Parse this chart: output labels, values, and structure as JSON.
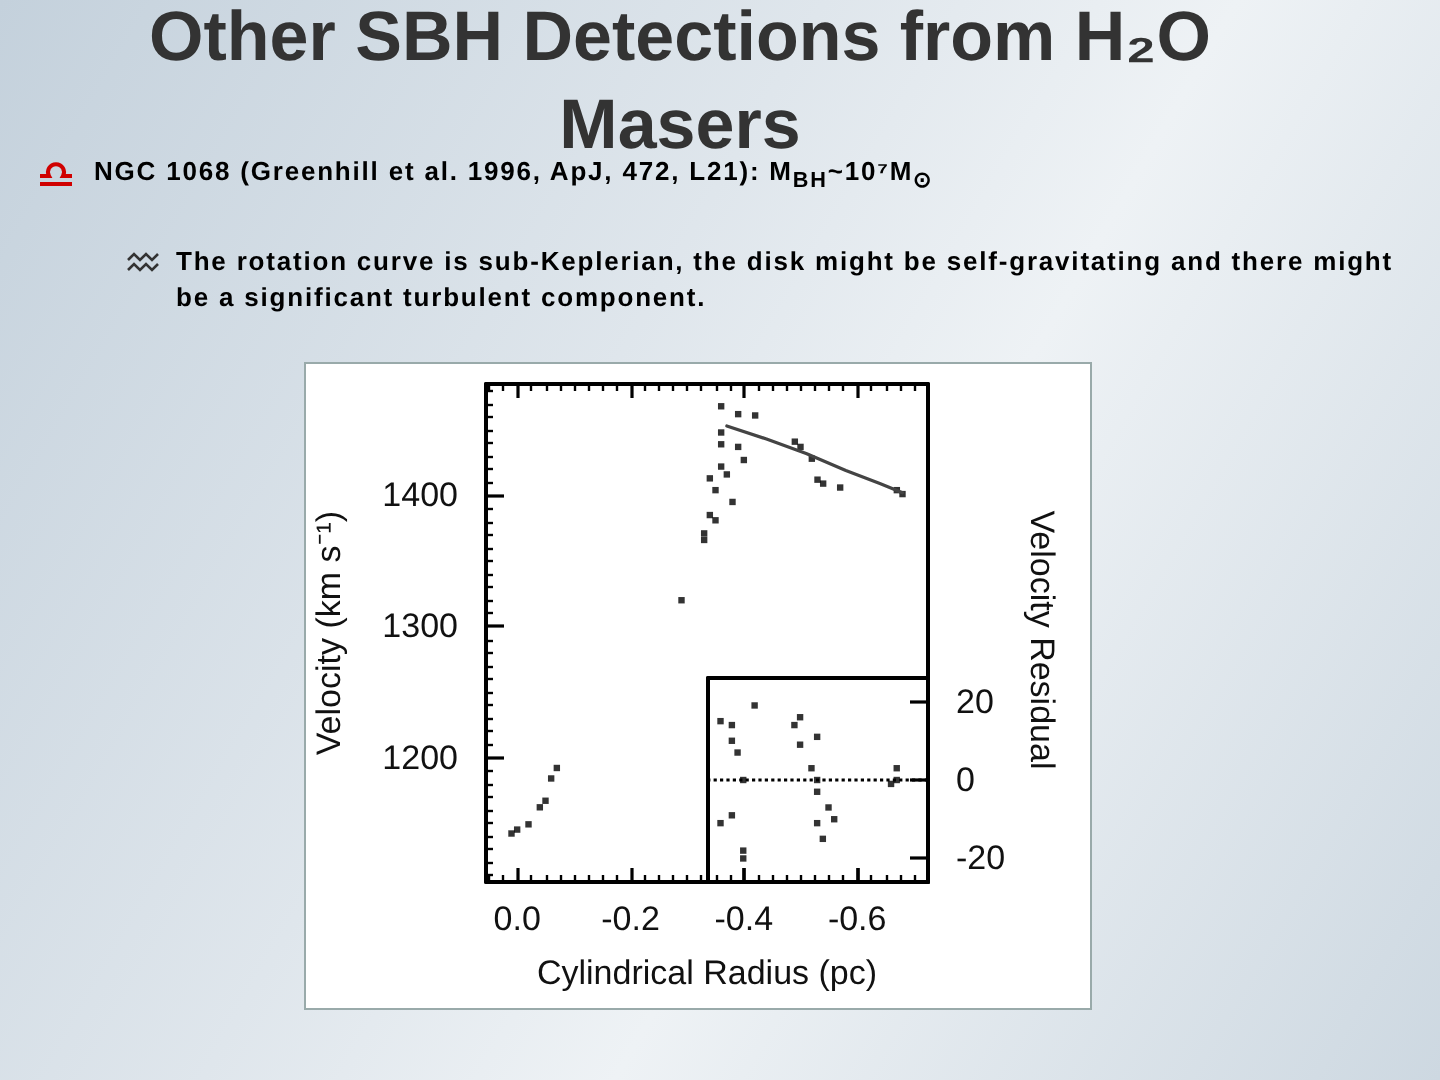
{
  "chart_data": [
    {
      "type": "scatter",
      "title": "Other SBH Detections from H₂O Masers",
      "subtitle": "NGC 1068 (Greenhill et al. 1996, ApJ, 472, L21): M$_{BH}$~10⁷M$_{⊙}$",
      "annotations": [
        "The rotation curve is sub-Keplerian, the disk might be self-gravitating and there might be a significant turbulent component."
      ],
      "xlabel": "Cylindrical Radius (pc)",
      "ylabel": "Velocity (km s⁻¹)",
      "marker": "square",
      "series": [
        {
          "color": "#000000",
          "x": [
            -0.36,
            -0.39,
            -0.42,
            -0.36,
            -0.36,
            -0.39,
            -0.36,
            -0.4,
            -0.34,
            -0.37,
            -0.35,
            -0.38,
            -0.34,
            -0.35,
            -0.33,
            -0.33,
            -0.29,
            -0.49,
            -0.5,
            -0.52,
            -0.53,
            -0.54,
            -0.57,
            -0.67,
            -0.68,
            -0.07,
            -0.06,
            -0.05,
            -0.04,
            -0.02,
            0.0,
            0.01
          ],
          "values": [
            1468,
            1462,
            1461,
            1448,
            1439,
            1437,
            1422,
            1427,
            1413,
            1416,
            1404,
            1395,
            1385,
            1381,
            1371,
            1366,
            1320,
            1441,
            1437,
            1428,
            1412,
            1409,
            1406,
            1404,
            1401,
            1192,
            1184,
            1167,
            1162,
            1149,
            1145,
            1142
          ]
        },
        {
          "type": "line",
          "marker": "none",
          "color": "#444444",
          "x": [
            -0.37,
            -0.44,
            -0.51,
            -0.58,
            -0.64,
            -0.68
          ],
          "values": [
            1453,
            1443,
            1432,
            1419,
            1409,
            1402
          ]
        }
      ],
      "xlim": [
        0.055,
        -0.725
      ],
      "ylim": [
        1105,
        1485
      ],
      "xticks": [
        {
          "value": 0,
          "label": "0.0"
        },
        -0.2,
        -0.4,
        -0.6,
        {
          "value": 0.05,
          "label": null
        },
        {
          "value": 0.025,
          "label": null
        },
        {
          "value": -0.025,
          "label": null
        },
        {
          "value": -0.05,
          "label": null
        },
        {
          "value": -0.075,
          "label": null
        },
        {
          "value": -0.1,
          "label": null
        },
        {
          "value": -0.125,
          "label": null
        },
        {
          "value": -0.15,
          "label": null
        },
        {
          "value": -0.175,
          "label": null
        },
        {
          "value": -0.225,
          "label": null
        },
        {
          "value": -0.25,
          "label": null
        },
        {
          "value": -0.275,
          "label": null
        },
        {
          "value": -0.3,
          "label": null
        },
        {
          "value": -0.325,
          "label": null
        },
        {
          "value": -0.35,
          "label": null
        },
        {
          "value": -0.375,
          "label": null
        },
        {
          "value": -0.425,
          "label": null
        },
        {
          "value": -0.45,
          "label": null
        },
        {
          "value": -0.475,
          "label": null
        },
        {
          "value": -0.5,
          "label": null
        },
        {
          "value": -0.525,
          "label": null
        },
        {
          "value": -0.55,
          "label": null
        },
        {
          "value": -0.575,
          "label": null
        },
        {
          "value": -0.625,
          "label": null
        },
        {
          "value": -0.65,
          "label": null
        },
        {
          "value": -0.675,
          "label": null
        },
        {
          "value": -0.7,
          "label": null
        }
      ],
      "yticks": [
        1200,
        1300,
        1400,
        {
          "value": 1110,
          "label": null
        },
        {
          "value": 1120,
          "label": null
        },
        {
          "value": 1130,
          "label": null
        },
        {
          "value": 1140,
          "label": null
        },
        {
          "value": 1150,
          "label": null
        },
        {
          "value": 1160,
          "label": null
        },
        {
          "value": 1170,
          "label": null
        },
        {
          "value": 1180,
          "label": null
        },
        {
          "value": 1190,
          "label": null
        },
        {
          "value": 1210,
          "label": null
        },
        {
          "value": 1220,
          "label": null
        },
        {
          "value": 1230,
          "label": null
        },
        {
          "value": 1240,
          "label": null
        },
        {
          "value": 1250,
          "label": null
        },
        {
          "value": 1260,
          "label": null
        },
        {
          "value": 1270,
          "label": null
        },
        {
          "value": 1280,
          "label": null
        },
        {
          "value": 1290,
          "label": null
        },
        {
          "value": 1310,
          "label": null
        },
        {
          "value": 1320,
          "label": null
        },
        {
          "value": 1330,
          "label": null
        },
        {
          "value": 1340,
          "label": null
        },
        {
          "value": 1350,
          "label": null
        },
        {
          "value": 1360,
          "label": null
        },
        {
          "value": 1370,
          "label": null
        },
        {
          "value": 1380,
          "label": null
        },
        {
          "value": 1390,
          "label": null
        },
        {
          "value": 1410,
          "label": null
        },
        {
          "value": 1420,
          "label": null
        },
        {
          "value": 1430,
          "label": null
        },
        {
          "value": 1440,
          "label": null
        },
        {
          "value": 1450,
          "label": null
        },
        {
          "value": 1460,
          "label": null
        },
        {
          "value": 1470,
          "label": null
        },
        {
          "value": 1480,
          "label": null
        }
      ]
    },
    {
      "type": "scatter",
      "ylabel": "Velocity Residual",
      "marker": "square",
      "tick_labels": "y",
      "series": [
        {
          "color": "#000000",
          "x": [
            -0.38,
            -0.38,
            -0.36,
            -0.42,
            -0.39,
            -0.4,
            -0.36,
            -0.38,
            -0.4,
            -0.4,
            -0.49,
            -0.5,
            -0.53,
            -0.52,
            -0.53,
            -0.53,
            -0.55,
            -0.53,
            -0.56,
            -0.54,
            -0.67,
            -0.66,
            -0.67,
            -0.5
          ],
          "values": [
            14,
            10,
            15,
            19,
            7,
            0,
            -11,
            -9,
            -20,
            -18,
            14,
            9,
            11,
            3,
            0,
            -3,
            -7,
            -11,
            -10,
            -15,
            0,
            -1,
            3,
            16
          ]
        }
      ],
      "xlim": [
        -0.338,
        -0.725
      ],
      "ylim": [
        -26,
        26
      ],
      "xticks": [
        -0.4,
        -0.6
      ],
      "yticks": [
        -20,
        0,
        20
      ],
      "ref_lines": [
        {
          "axis": "y",
          "value": 0,
          "line_style": "dotted",
          "color": "#000000"
        }
      ]
    }
  ]
}
